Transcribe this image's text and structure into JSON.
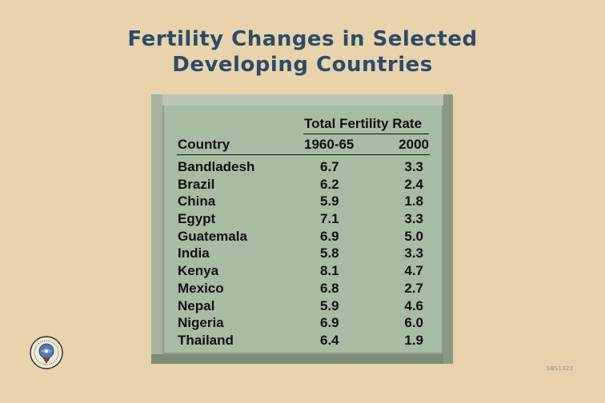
{
  "slide": {
    "title_line1": "Fertility Changes in Selected",
    "title_line2": "Developing Countries",
    "code": "SBS1322"
  },
  "table": {
    "group_header": "Total Fertility Rate",
    "columns": [
      "Country",
      "1960-65",
      "2000"
    ],
    "rows": [
      {
        "country": "Bandladesh",
        "tfr_1960_65": "6.7",
        "tfr_2000": "3.3"
      },
      {
        "country": "Brazil",
        "tfr_1960_65": "6.2",
        "tfr_2000": "2.4"
      },
      {
        "country": "China",
        "tfr_1960_65": "5.9",
        "tfr_2000": "1.8"
      },
      {
        "country": "Egypt",
        "tfr_1960_65": "7.1",
        "tfr_2000": "3.3"
      },
      {
        "country": "Guatemala",
        "tfr_1960_65": "6.9",
        "tfr_2000": "5.0"
      },
      {
        "country": "India",
        "tfr_1960_65": "5.8",
        "tfr_2000": "3.3"
      },
      {
        "country": "Kenya",
        "tfr_1960_65": "8.1",
        "tfr_2000": "4.7"
      },
      {
        "country": "Mexico",
        "tfr_1960_65": "6.8",
        "tfr_2000": "2.7"
      },
      {
        "country": "Nepal",
        "tfr_1960_65": "5.9",
        "tfr_2000": "4.6"
      },
      {
        "country": "Nigeria",
        "tfr_1960_65": "6.9",
        "tfr_2000": "6.0"
      },
      {
        "country": "Thailand",
        "tfr_1960_65": "6.4",
        "tfr_2000": "1.9"
      }
    ]
  },
  "colors": {
    "background": "#e8d3aa",
    "title": "#2c4b6c",
    "panel": "#a8bba3",
    "frame": "#8e9e87"
  },
  "icons": {
    "seal": "institution-seal-icon"
  }
}
